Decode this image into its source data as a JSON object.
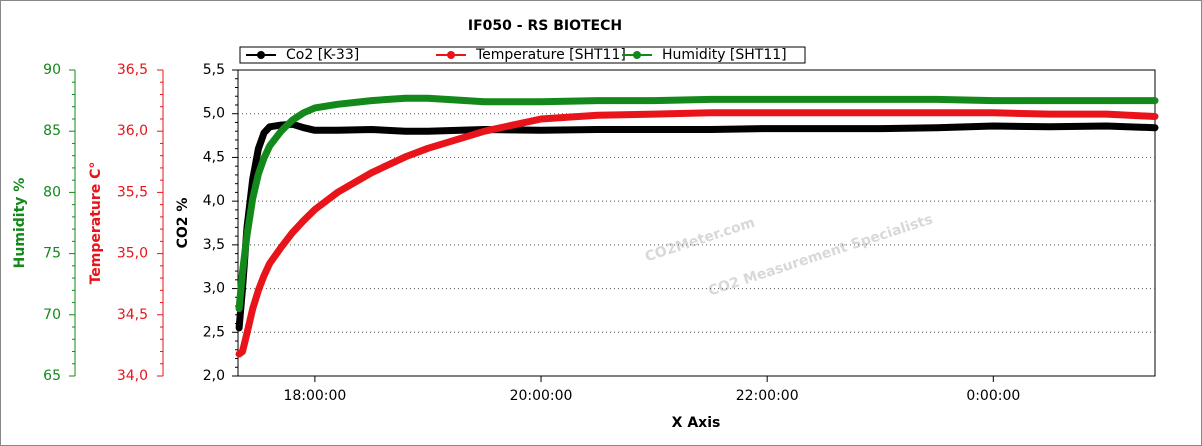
{
  "chart_data": {
    "type": "line",
    "title": "IF050 - RS BIOTECH",
    "x_label": "X Axis",
    "y_label": "CO2 %",
    "y2_label": "Temperature C°",
    "y3_label": "Humidity %",
    "watermark": "CO2Meter.com",
    "watermark_sub": "CO2 Measurement Specialists",
    "x": [
      17.33,
      17.36,
      17.4,
      17.45,
      17.5,
      17.55,
      17.6,
      17.7,
      17.8,
      17.9,
      18.0,
      18.2,
      18.5,
      18.8,
      19.0,
      19.5,
      20.0,
      20.5,
      21.0,
      21.5,
      22.0,
      22.5,
      23.0,
      23.5,
      24.0,
      24.5,
      25.0,
      25.43
    ],
    "xlim": [
      17.32,
      25.43
    ],
    "xticks": [
      {
        "value": 18,
        "label": "18:00:00"
      },
      {
        "value": 20,
        "label": "20:00:00"
      },
      {
        "value": 22,
        "label": "22:00:00"
      },
      {
        "value": 24,
        "label": "0:00:00"
      }
    ],
    "ylim": [
      2.0,
      5.5
    ],
    "yticks": [
      {
        "value": 2.0,
        "label": "2,0"
      },
      {
        "value": 2.5,
        "label": "2,5"
      },
      {
        "value": 3.0,
        "label": "3,0"
      },
      {
        "value": 3.5,
        "label": "3,5"
      },
      {
        "value": 4.0,
        "label": "4,0"
      },
      {
        "value": 4.5,
        "label": "4,5"
      },
      {
        "value": 5.0,
        "label": "5,0"
      },
      {
        "value": 5.5,
        "label": "5,5"
      }
    ],
    "y2lim": [
      34.0,
      36.5
    ],
    "y2ticks": [
      {
        "value": 34.0,
        "label": "34,0"
      },
      {
        "value": 34.5,
        "label": "34,5"
      },
      {
        "value": 35.0,
        "label": "35,0"
      },
      {
        "value": 35.5,
        "label": "35,5"
      },
      {
        "value": 36.0,
        "label": "36,0"
      },
      {
        "value": 36.5,
        "label": "36,5"
      }
    ],
    "y3lim": [
      65,
      90
    ],
    "y3ticks": [
      65,
      70,
      75,
      80,
      85,
      90
    ],
    "grid": true,
    "series": [
      {
        "name": "Co2 [K-33]",
        "color": "#000000",
        "axis": "y",
        "values": [
          2.55,
          3.0,
          3.7,
          4.25,
          4.6,
          4.78,
          4.85,
          4.87,
          4.88,
          4.84,
          4.81,
          4.81,
          4.82,
          4.8,
          4.8,
          4.82,
          4.81,
          4.82,
          4.82,
          4.82,
          4.83,
          4.83,
          4.83,
          4.84,
          4.86,
          4.85,
          4.86,
          4.84
        ]
      },
      {
        "name": "Temperature [SHT11]",
        "color": "#e8141a",
        "axis": "y2",
        "values": [
          34.18,
          34.2,
          34.35,
          34.55,
          34.7,
          34.82,
          34.92,
          35.05,
          35.17,
          35.27,
          35.36,
          35.5,
          35.66,
          35.79,
          35.86,
          36.0,
          36.1,
          36.13,
          36.14,
          36.15,
          36.15,
          36.15,
          36.15,
          36.15,
          36.15,
          36.14,
          36.14,
          36.12
        ]
      },
      {
        "name": "Humidity [SHT11]",
        "color": "#13891b",
        "axis": "y3",
        "values": [
          70.5,
          73.5,
          76.5,
          79.5,
          81.5,
          82.8,
          83.8,
          85.0,
          85.9,
          86.5,
          86.9,
          87.2,
          87.5,
          87.7,
          87.7,
          87.4,
          87.4,
          87.5,
          87.5,
          87.6,
          87.6,
          87.6,
          87.6,
          87.6,
          87.5,
          87.5,
          87.5,
          87.5
        ]
      }
    ]
  }
}
